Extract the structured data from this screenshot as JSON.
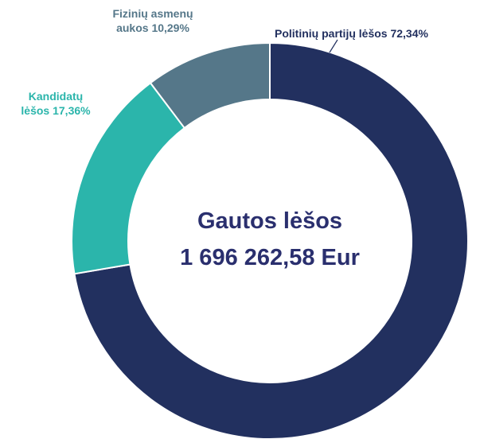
{
  "chart_data": {
    "type": "donut",
    "categories": [
      "Politinių partijų lėšos",
      "Kandidatų lėšos",
      "Fizinių asmenų aukos"
    ],
    "values": [
      72.34,
      17.36,
      10.29
    ],
    "value_labels": [
      "72,34%",
      "17,36%",
      "10,29%"
    ],
    "colors": [
      "#22305f",
      "#2bb5ab",
      "#557789"
    ],
    "center_title": "Gautos lėšos",
    "center_value": "1 696 262,58 Eur"
  }
}
